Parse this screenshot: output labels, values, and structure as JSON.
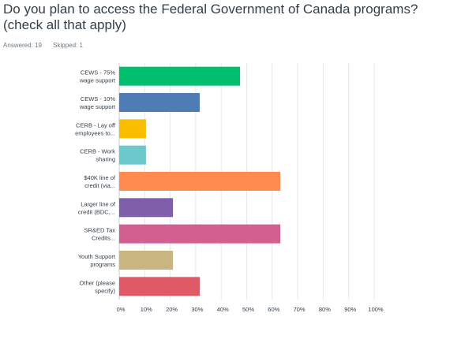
{
  "question": {
    "title": "Do you plan to access the Federal Government of Canada programs? (check all that apply)",
    "answered_label": "Answered: 19",
    "skipped_label": "Skipped: 1"
  },
  "chart_data": {
    "type": "bar",
    "orientation": "horizontal",
    "title": "",
    "xlabel": "",
    "ylabel": "",
    "xlim": [
      0,
      100
    ],
    "grid": true,
    "tick_labels": [
      "0%",
      "10%",
      "20%",
      "30%",
      "40%",
      "50%",
      "60%",
      "70%",
      "80%",
      "90%",
      "100%"
    ],
    "categories": [
      [
        "CEWS - 75%",
        "wage support"
      ],
      [
        "CEWS - 10%",
        "wage support"
      ],
      [
        "CERB - Lay off",
        "employees to..."
      ],
      [
        "CERB - Work",
        "sharing"
      ],
      [
        "$40K line of",
        "credit (via..."
      ],
      [
        "Larger line of",
        "credit (BDC,..."
      ],
      [
        "SR&ED Tax",
        "Credits..."
      ],
      [
        "Youth Support",
        "programs"
      ],
      [
        "Other (please",
        "specify)"
      ]
    ],
    "values": [
      47.4,
      31.6,
      10.5,
      10.5,
      63.2,
      21.1,
      63.2,
      21.1,
      31.6
    ],
    "colors": [
      "#00bf6f",
      "#507cb6",
      "#f9be00",
      "#6bc8cd",
      "#ff8b4f",
      "#7f5fa9",
      "#d25f90",
      "#c8b580",
      "#e05966"
    ]
  }
}
